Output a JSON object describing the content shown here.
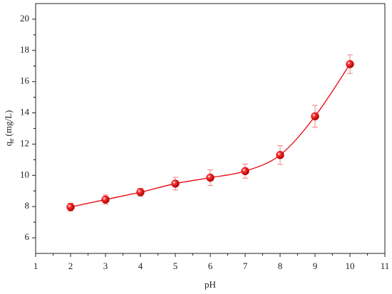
{
  "chart_data": {
    "type": "scatter",
    "x_label": "pH",
    "y_label": {
      "main": "q",
      "sub": "e",
      "unit": "(mg/L)"
    },
    "x": [
      2,
      3,
      4,
      5,
      6,
      7,
      8,
      9,
      10
    ],
    "series": [
      {
        "color": "#e8000b",
        "values": [
          7.97,
          8.45,
          8.92,
          9.47,
          9.85,
          10.27,
          11.3,
          13.78,
          17.12
        ],
        "errors": [
          0.25,
          0.3,
          0.25,
          0.4,
          0.5,
          0.45,
          0.6,
          0.7,
          0.6
        ]
      }
    ],
    "xlim": [
      1,
      11
    ],
    "xticks": [
      1,
      2,
      3,
      4,
      5,
      6,
      7,
      8,
      9,
      10,
      11
    ],
    "ylim": [
      5,
      21
    ],
    "yticks": [
      6,
      8,
      10,
      12,
      14,
      16,
      18,
      20
    ]
  }
}
